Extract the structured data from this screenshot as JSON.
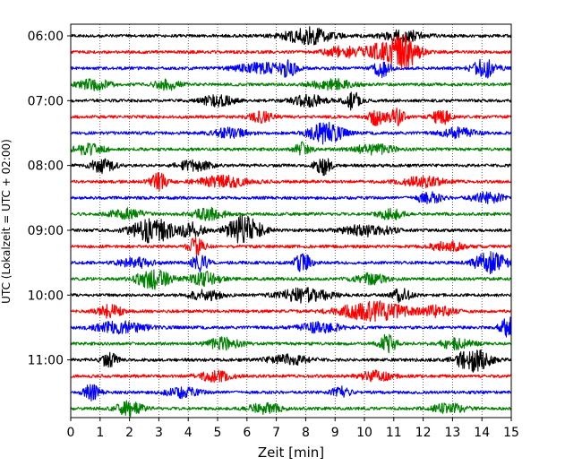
{
  "chart_data": {
    "type": "line",
    "subtype": "helicorder",
    "xlabel": "Zeit  [min]",
    "ylabel": "UTC (Lokalzeit = UTC + 02:00)",
    "xlim": [
      0,
      15
    ],
    "x_ticks": [
      0,
      1,
      2,
      3,
      4,
      5,
      6,
      7,
      8,
      9,
      10,
      11,
      12,
      13,
      14,
      15
    ],
    "vertical_grid": true,
    "trace_colors": [
      "#000000",
      "#ff0000",
      "#0000ff",
      "#008000"
    ],
    "trace_interval_min": 15,
    "y_ticks": [
      {
        "label": "06:00",
        "trace_index": 0
      },
      {
        "label": "07:00",
        "trace_index": 4
      },
      {
        "label": "08:00",
        "trace_index": 8
      },
      {
        "label": "09:00",
        "trace_index": 12
      },
      {
        "label": "10:00",
        "trace_index": 16
      },
      {
        "label": "11:00",
        "trace_index": 20
      }
    ],
    "traces": [
      {
        "start": "06:00",
        "bursts": [
          [
            8.1,
            0.6,
            1.6
          ],
          [
            11.3,
            0.5,
            1.1
          ]
        ]
      },
      {
        "start": "06:15",
        "bursts": [
          [
            10.8,
            0.6,
            1.9
          ],
          [
            11.4,
            0.3,
            2.2
          ],
          [
            9.2,
            0.4,
            1.0
          ]
        ]
      },
      {
        "start": "06:30",
        "bursts": [
          [
            7.4,
            0.2,
            1.4
          ],
          [
            10.6,
            0.2,
            1.6
          ],
          [
            14.1,
            0.3,
            1.8
          ],
          [
            6.5,
            0.6,
            1.0
          ]
        ]
      },
      {
        "start": "06:45",
        "bursts": [
          [
            0.8,
            0.4,
            1.0
          ],
          [
            3.3,
            0.3,
            1.0
          ],
          [
            8.9,
            0.5,
            1.0
          ]
        ]
      },
      {
        "start": "07:00",
        "bursts": [
          [
            9.6,
            0.2,
            1.7
          ],
          [
            8.1,
            0.4,
            1.1
          ],
          [
            5.0,
            0.4,
            1.0
          ]
        ]
      },
      {
        "start": "07:15",
        "bursts": [
          [
            10.4,
            0.2,
            1.6
          ],
          [
            11.1,
            0.2,
            1.6
          ],
          [
            12.6,
            0.2,
            1.7
          ],
          [
            6.5,
            0.3,
            1.0
          ]
        ]
      },
      {
        "start": "07:30",
        "bursts": [
          [
            8.7,
            0.4,
            2.1
          ],
          [
            5.4,
            0.4,
            1.0
          ],
          [
            13.2,
            0.4,
            1.0
          ]
        ]
      },
      {
        "start": "07:45",
        "bursts": [
          [
            7.9,
            0.2,
            1.3
          ],
          [
            0.6,
            0.4,
            1.0
          ],
          [
            10.3,
            0.5,
            1.0
          ]
        ]
      },
      {
        "start": "08:00",
        "bursts": [
          [
            1.1,
            0.3,
            1.4
          ],
          [
            8.6,
            0.2,
            1.8
          ],
          [
            4.2,
            0.4,
            1.0
          ]
        ]
      },
      {
        "start": "08:15",
        "bursts": [
          [
            3.0,
            0.2,
            1.6
          ],
          [
            5.2,
            0.6,
            1.1
          ],
          [
            12.0,
            0.5,
            1.0
          ]
        ]
      },
      {
        "start": "08:30",
        "bursts": [
          [
            12.2,
            0.3,
            1.1
          ],
          [
            14.2,
            0.4,
            1.0
          ]
        ]
      },
      {
        "start": "08:45",
        "bursts": [
          [
            4.7,
            0.4,
            1.1
          ],
          [
            10.9,
            0.3,
            1.1
          ],
          [
            1.9,
            0.4,
            1.0
          ]
        ]
      },
      {
        "start": "09:00",
        "bursts": [
          [
            2.8,
            0.5,
            2.4
          ],
          [
            5.9,
            0.4,
            3.0
          ],
          [
            4.1,
            0.3,
            1.4
          ],
          [
            10.1,
            0.6,
            1.1
          ]
        ]
      },
      {
        "start": "09:15",
        "bursts": [
          [
            4.3,
            0.2,
            1.8
          ],
          [
            12.8,
            0.4,
            1.0
          ]
        ]
      },
      {
        "start": "09:30",
        "bursts": [
          [
            4.4,
            0.2,
            1.6
          ],
          [
            7.9,
            0.2,
            1.8
          ],
          [
            14.3,
            0.4,
            2.1
          ],
          [
            2.2,
            0.4,
            1.0
          ]
        ]
      },
      {
        "start": "09:45",
        "bursts": [
          [
            2.8,
            0.4,
            1.9
          ],
          [
            4.6,
            0.4,
            1.3
          ],
          [
            10.2,
            0.4,
            1.0
          ]
        ]
      },
      {
        "start": "10:00",
        "bursts": [
          [
            8.0,
            0.6,
            1.4
          ],
          [
            11.3,
            0.2,
            1.7
          ],
          [
            4.6,
            0.4,
            1.0
          ]
        ]
      },
      {
        "start": "10:15",
        "bursts": [
          [
            10.3,
            0.8,
            1.9
          ],
          [
            1.3,
            0.3,
            1.3
          ],
          [
            12.5,
            0.4,
            1.0
          ]
        ]
      },
      {
        "start": "10:30",
        "bursts": [
          [
            1.7,
            0.6,
            1.2
          ],
          [
            14.9,
            0.2,
            2.0
          ],
          [
            8.5,
            0.5,
            1.0
          ]
        ]
      },
      {
        "start": "10:45",
        "bursts": [
          [
            10.8,
            0.2,
            2.0
          ],
          [
            5.2,
            0.4,
            1.2
          ],
          [
            13.1,
            0.4,
            1.0
          ]
        ]
      },
      {
        "start": "11:00",
        "bursts": [
          [
            13.7,
            0.4,
            2.3
          ],
          [
            1.3,
            0.2,
            1.4
          ],
          [
            7.4,
            0.5,
            1.0
          ]
        ]
      },
      {
        "start": "11:15",
        "bursts": [
          [
            4.9,
            0.4,
            1.0
          ],
          [
            10.4,
            0.4,
            1.0
          ]
        ]
      },
      {
        "start": "11:30",
        "bursts": [
          [
            0.7,
            0.2,
            1.5
          ],
          [
            9.2,
            0.2,
            1.3
          ],
          [
            3.8,
            0.4,
            1.0
          ]
        ]
      },
      {
        "start": "11:45",
        "bursts": [
          [
            2.0,
            0.3,
            1.4
          ],
          [
            6.6,
            0.4,
            1.0
          ],
          [
            12.9,
            0.4,
            1.0
          ]
        ]
      }
    ]
  }
}
